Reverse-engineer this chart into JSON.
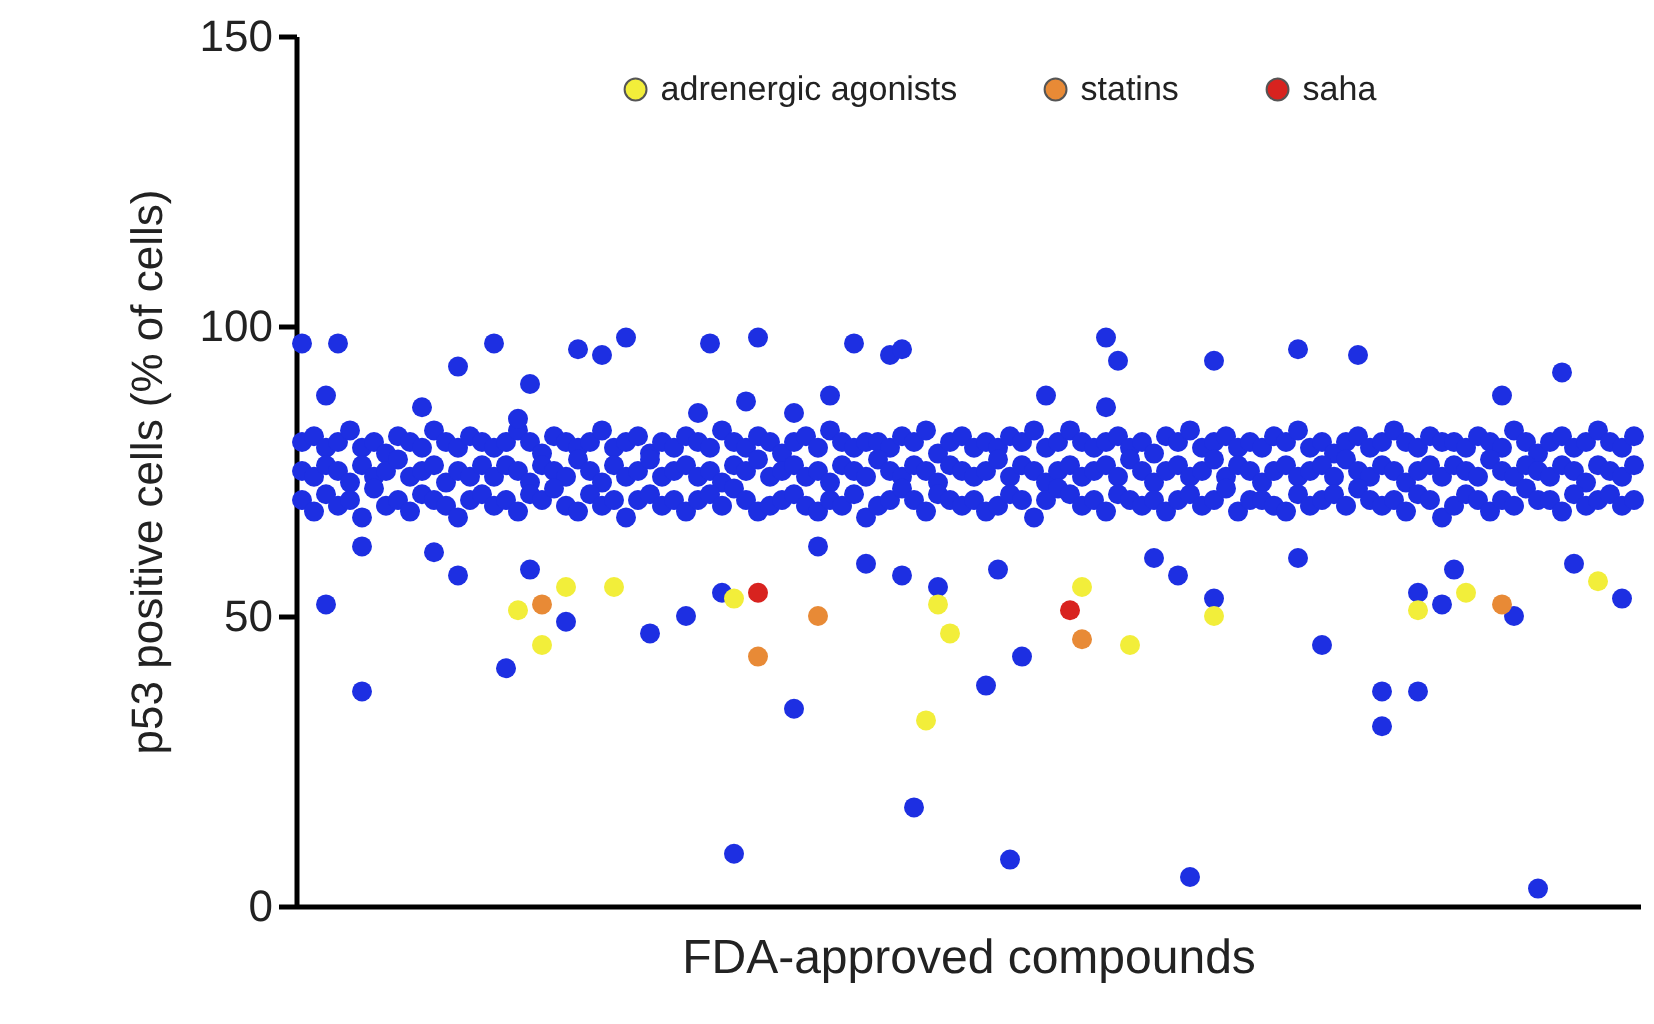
{
  "chart_data": {
    "type": "scatter",
    "xlabel": "FDA-approved compounds",
    "ylabel": "p53 positive cells (% of cells)",
    "ylim": [
      0,
      150
    ],
    "yticks": [
      0,
      50,
      100,
      150
    ],
    "grid": false,
    "legend": "top",
    "marker": "circle",
    "categories": [
      null,
      null,
      null,
      null,
      null,
      null,
      null,
      null,
      null,
      null,
      null,
      null,
      null,
      null,
      null,
      null,
      null,
      null,
      null,
      null,
      null,
      null,
      null,
      null,
      null,
      null,
      null,
      null,
      null,
      null,
      null,
      null,
      null,
      null,
      null,
      null,
      null,
      null,
      null,
      null,
      null,
      null,
      null,
      null,
      null,
      null,
      null,
      null,
      null,
      null,
      null,
      null,
      null,
      null,
      null,
      null,
      null,
      null,
      null,
      null,
      null,
      null,
      null,
      null,
      null,
      null,
      null,
      null,
      null,
      null,
      null,
      null,
      null,
      null,
      null,
      null,
      null,
      null,
      null,
      null,
      null,
      null,
      null,
      null,
      null,
      null,
      null,
      null,
      null,
      null,
      null,
      null,
      null,
      null,
      null,
      null,
      null,
      null,
      null,
      null,
      null,
      null,
      null,
      null,
      null,
      null,
      null,
      null,
      null,
      null,
      null,
      null
    ],
    "series": [
      {
        "color": "#1d2fe2",
        "values": [
          80,
          81,
          79,
          80,
          82,
          79,
          80,
          78,
          81,
          80,
          79,
          82,
          80,
          79,
          81,
          80,
          79,
          80,
          82,
          80,
          78,
          81,
          80,
          79,
          80,
          82,
          79,
          80,
          81,
          78,
          80,
          79,
          81,
          80,
          79,
          82,
          80,
          79,
          81,
          80,
          78,
          80,
          81,
          79,
          82,
          80,
          79,
          80,
          80,
          79,
          81,
          80,
          82,
          78,
          80,
          81,
          79,
          80,
          79,
          81,
          80,
          82,
          79,
          80,
          82,
          80,
          79,
          80,
          81,
          79,
          80,
          78,
          81,
          80,
          82,
          79,
          80,
          81,
          79,
          80,
          79,
          81,
          80,
          82,
          79,
          80,
          78,
          80,
          81,
          79,
          80,
          82,
          80,
          79,
          81,
          80,
          80,
          79,
          81,
          80,
          79,
          82,
          80,
          78,
          80,
          81,
          79,
          80,
          82,
          80,
          79,
          81
        ]
      },
      {
        "color": "#1d2fe2",
        "values": [
          75,
          74,
          76,
          75,
          73,
          76,
          74,
          75,
          77,
          74,
          75,
          76,
          73,
          75,
          74,
          76,
          74,
          76,
          75,
          73,
          76,
          75,
          74,
          77,
          75,
          73,
          76,
          74,
          75,
          77,
          74,
          75,
          76,
          74,
          75,
          73,
          76,
          75,
          77,
          74,
          75,
          76,
          74,
          75,
          73,
          76,
          75,
          74,
          77,
          75,
          74,
          76,
          75,
          73,
          76,
          75,
          74,
          75,
          77,
          74,
          76,
          75,
          73,
          75,
          76,
          74,
          75,
          76,
          74,
          77,
          75,
          73,
          75,
          76,
          74,
          75,
          77,
          74,
          76,
          75,
          73,
          75,
          76,
          74,
          75,
          76,
          74,
          77,
          75,
          74,
          76,
          75,
          73,
          75,
          76,
          74,
          76,
          75,
          74,
          77,
          75,
          74,
          76,
          75,
          74,
          76,
          75,
          73,
          76,
          75,
          74,
          76
        ]
      },
      {
        "color": "#1d2fe2",
        "values": [
          70,
          68,
          71,
          69,
          70,
          67,
          72,
          69,
          70,
          68,
          71,
          70,
          69,
          67,
          70,
          71,
          69,
          70,
          68,
          71,
          70,
          72,
          69,
          68,
          71,
          69,
          70,
          67,
          70,
          71,
          69,
          70,
          68,
          70,
          71,
          69,
          72,
          70,
          68,
          69,
          70,
          71,
          69,
          68,
          70,
          69,
          71,
          67,
          69,
          70,
          72,
          70,
          68,
          71,
          70,
          69,
          70,
          68,
          69,
          71,
          70,
          67,
          70,
          72,
          71,
          69,
          70,
          68,
          71,
          70,
          69,
          70,
          68,
          70,
          71,
          69,
          70,
          72,
          68,
          70,
          70,
          69,
          68,
          71,
          69,
          70,
          71,
          69,
          72,
          70,
          69,
          70,
          68,
          71,
          70,
          67,
          69,
          71,
          70,
          68,
          70,
          69,
          72,
          70,
          70,
          68,
          71,
          69,
          70,
          71,
          69,
          70
        ]
      },
      {
        "color": "#1d2fe2",
        "values": [
          97,
          null,
          88,
          97,
          null,
          62,
          null,
          null,
          null,
          null,
          86,
          61,
          null,
          93,
          null,
          null,
          97,
          41,
          84,
          58,
          null,
          null,
          49,
          96,
          null,
          95,
          null,
          98,
          null,
          47,
          null,
          null,
          50,
          85,
          97,
          54,
          9,
          87,
          98,
          null,
          null,
          34,
          null,
          62,
          88,
          null,
          97,
          59,
          null,
          95,
          57,
          17,
          null,
          55,
          null,
          null,
          null,
          38,
          58,
          8,
          43,
          null,
          88,
          null,
          null,
          null,
          null,
          98,
          94,
          null,
          null,
          60,
          null,
          57,
          5,
          null,
          53,
          null,
          null,
          null,
          null,
          null,
          null,
          60,
          null,
          45,
          null,
          null,
          95,
          null,
          37,
          null,
          null,
          54,
          null,
          52,
          58,
          null,
          null,
          null,
          88,
          50,
          null,
          3,
          null,
          92,
          59,
          null,
          null,
          null,
          53,
          null
        ]
      },
      {
        "color": "#1d2fe2",
        "values": [
          null,
          null,
          52,
          null,
          null,
          37,
          null,
          null,
          null,
          null,
          null,
          null,
          null,
          57,
          null,
          null,
          null,
          null,
          null,
          90,
          null,
          null,
          null,
          null,
          null,
          null,
          null,
          null,
          null,
          null,
          null,
          null,
          null,
          null,
          null,
          null,
          null,
          null,
          null,
          null,
          null,
          85,
          null,
          null,
          null,
          null,
          null,
          null,
          null,
          null,
          96,
          null,
          null,
          null,
          null,
          null,
          null,
          null,
          null,
          null,
          null,
          null,
          null,
          null,
          null,
          null,
          null,
          86,
          null,
          null,
          null,
          null,
          null,
          null,
          null,
          null,
          94,
          null,
          null,
          null,
          null,
          null,
          null,
          96,
          null,
          null,
          null,
          null,
          null,
          null,
          31,
          null,
          null,
          37,
          null,
          null,
          null,
          null,
          null,
          null,
          null,
          null,
          null,
          null,
          null,
          null,
          null,
          null,
          null,
          null,
          null,
          null
        ]
      },
      {
        "name": "adrenergic agonists",
        "color": "#f2ee3a",
        "values": [
          null,
          null,
          null,
          null,
          null,
          null,
          null,
          null,
          null,
          null,
          null,
          null,
          null,
          null,
          null,
          null,
          null,
          null,
          51,
          null,
          45,
          null,
          55,
          null,
          null,
          null,
          55,
          null,
          null,
          null,
          null,
          null,
          null,
          null,
          null,
          null,
          53,
          null,
          null,
          null,
          null,
          null,
          null,
          null,
          null,
          null,
          null,
          null,
          null,
          null,
          null,
          null,
          32,
          52,
          47,
          null,
          null,
          null,
          null,
          null,
          null,
          null,
          null,
          null,
          null,
          55,
          null,
          null,
          null,
          45,
          null,
          null,
          null,
          null,
          null,
          null,
          50,
          null,
          null,
          null,
          null,
          null,
          null,
          null,
          null,
          null,
          null,
          null,
          null,
          null,
          null,
          null,
          null,
          51,
          null,
          null,
          null,
          54,
          null,
          null,
          null,
          null,
          null,
          null,
          null,
          null,
          null,
          null,
          56,
          null,
          null,
          null
        ]
      },
      {
        "name": "statins",
        "color": "#e88a36",
        "values": [
          null,
          null,
          null,
          null,
          null,
          null,
          null,
          null,
          null,
          null,
          null,
          null,
          null,
          null,
          null,
          null,
          null,
          null,
          null,
          null,
          52,
          null,
          null,
          null,
          null,
          null,
          null,
          null,
          null,
          null,
          null,
          null,
          null,
          null,
          null,
          null,
          null,
          null,
          43,
          null,
          null,
          null,
          null,
          50,
          null,
          null,
          null,
          null,
          null,
          null,
          null,
          null,
          null,
          null,
          null,
          null,
          null,
          null,
          null,
          null,
          null,
          null,
          null,
          null,
          null,
          46,
          null,
          null,
          null,
          null,
          null,
          null,
          null,
          null,
          null,
          null,
          null,
          null,
          null,
          null,
          null,
          null,
          null,
          null,
          null,
          null,
          null,
          null,
          null,
          null,
          null,
          null,
          null,
          null,
          null,
          null,
          null,
          null,
          null,
          null,
          52,
          null,
          null,
          null,
          null,
          null,
          null,
          null,
          null,
          null,
          null,
          null
        ]
      },
      {
        "name": "saha",
        "color": "#d8231f",
        "values": [
          null,
          null,
          null,
          null,
          null,
          null,
          null,
          null,
          null,
          null,
          null,
          null,
          null,
          null,
          null,
          null,
          null,
          null,
          null,
          null,
          null,
          null,
          null,
          null,
          null,
          null,
          null,
          null,
          null,
          null,
          null,
          null,
          null,
          null,
          null,
          null,
          null,
          null,
          54,
          null,
          null,
          null,
          null,
          null,
          null,
          null,
          null,
          null,
          null,
          null,
          null,
          null,
          null,
          null,
          null,
          null,
          null,
          null,
          null,
          null,
          null,
          null,
          null,
          null,
          51,
          null,
          null,
          null,
          null,
          null,
          null,
          null,
          null,
          null,
          null,
          null,
          null,
          null,
          null,
          null,
          null,
          null,
          null,
          null,
          null,
          null,
          null,
          null,
          null,
          null,
          null,
          null,
          null,
          null,
          null,
          null,
          null,
          null,
          null,
          null,
          null,
          null,
          null,
          null,
          null,
          null,
          null,
          null,
          null,
          null,
          null,
          null
        ]
      }
    ]
  }
}
